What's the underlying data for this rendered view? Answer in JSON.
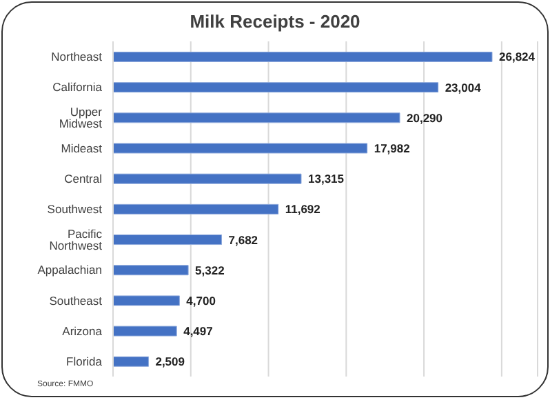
{
  "chart_data": {
    "type": "bar",
    "orientation": "horizontal",
    "title": "Milk Receipts - 2020",
    "categories": [
      "Northeast",
      "California",
      "Upper Midwest",
      "Mideast",
      "Central",
      "Southwest",
      "Pacific Northwest",
      "Appalachian",
      "Southeast",
      "Arizona",
      "Florida"
    ],
    "values": [
      26824,
      23004,
      20290,
      17982,
      13315,
      11692,
      7682,
      5322,
      4700,
      4497,
      2509
    ],
    "value_labels": [
      "26,824",
      "23,004",
      "20,290",
      "17,982",
      "13,315",
      "11,692",
      "7,682",
      "5,322",
      "4,700",
      "4,497",
      "2,509"
    ],
    "color": "#4472c4",
    "grid": "x",
    "tick_labels": "y",
    "annotations": [
      "Source: FMMO"
    ]
  }
}
